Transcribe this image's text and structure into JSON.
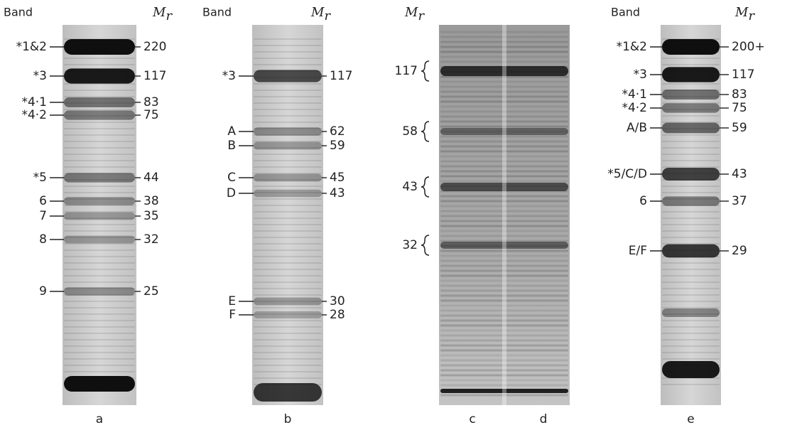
{
  "panels": [
    {
      "band_header": "Band",
      "mr_header": {
        "symbol": "M",
        "subscript": "r"
      },
      "lane_label": "a",
      "bands": [
        {
          "label": "*1&2",
          "mr": "220"
        },
        {
          "label": "*3",
          "mr": "117"
        },
        {
          "label": "*4·1",
          "mr": "83"
        },
        {
          "label": "*4·2",
          "mr": "75"
        },
        {
          "label": "*5",
          "mr": "44"
        },
        {
          "label": "6",
          "mr": "38"
        },
        {
          "label": "7",
          "mr": "35"
        },
        {
          "label": "8",
          "mr": "32"
        },
        {
          "label": "9",
          "mr": "25"
        }
      ]
    },
    {
      "band_header": "Band",
      "mr_header": {
        "symbol": "M",
        "subscript": "r"
      },
      "lane_label": "b",
      "bands": [
        {
          "label": "*3",
          "mr": "117"
        },
        {
          "label": "A",
          "mr": "62"
        },
        {
          "label": "B",
          "mr": "59"
        },
        {
          "label": "C",
          "mr": "45"
        },
        {
          "label": "D",
          "mr": "43"
        },
        {
          "label": "E",
          "mr": "30"
        },
        {
          "label": "F",
          "mr": "28"
        }
      ]
    },
    {
      "mr_header": {
        "symbol": "M",
        "subscript": "r"
      },
      "lane_labels": [
        "c",
        "d"
      ],
      "markers": [
        "117",
        "58",
        "43",
        "32"
      ]
    },
    {
      "band_header": "Band",
      "mr_header": {
        "symbol": "M",
        "subscript": "r"
      },
      "lane_label": "e",
      "bands": [
        {
          "label": "*1&2",
          "mr": "200+"
        },
        {
          "label": "*3",
          "mr": "117"
        },
        {
          "label": "*4·1",
          "mr": "83"
        },
        {
          "label": "*4·2",
          "mr": "75"
        },
        {
          "label": "A/B",
          "mr": "59"
        },
        {
          "label": "*5/C/D",
          "mr": "43"
        },
        {
          "label": "6",
          "mr": "37"
        },
        {
          "label": "E/F",
          "mr": "29"
        }
      ]
    }
  ]
}
